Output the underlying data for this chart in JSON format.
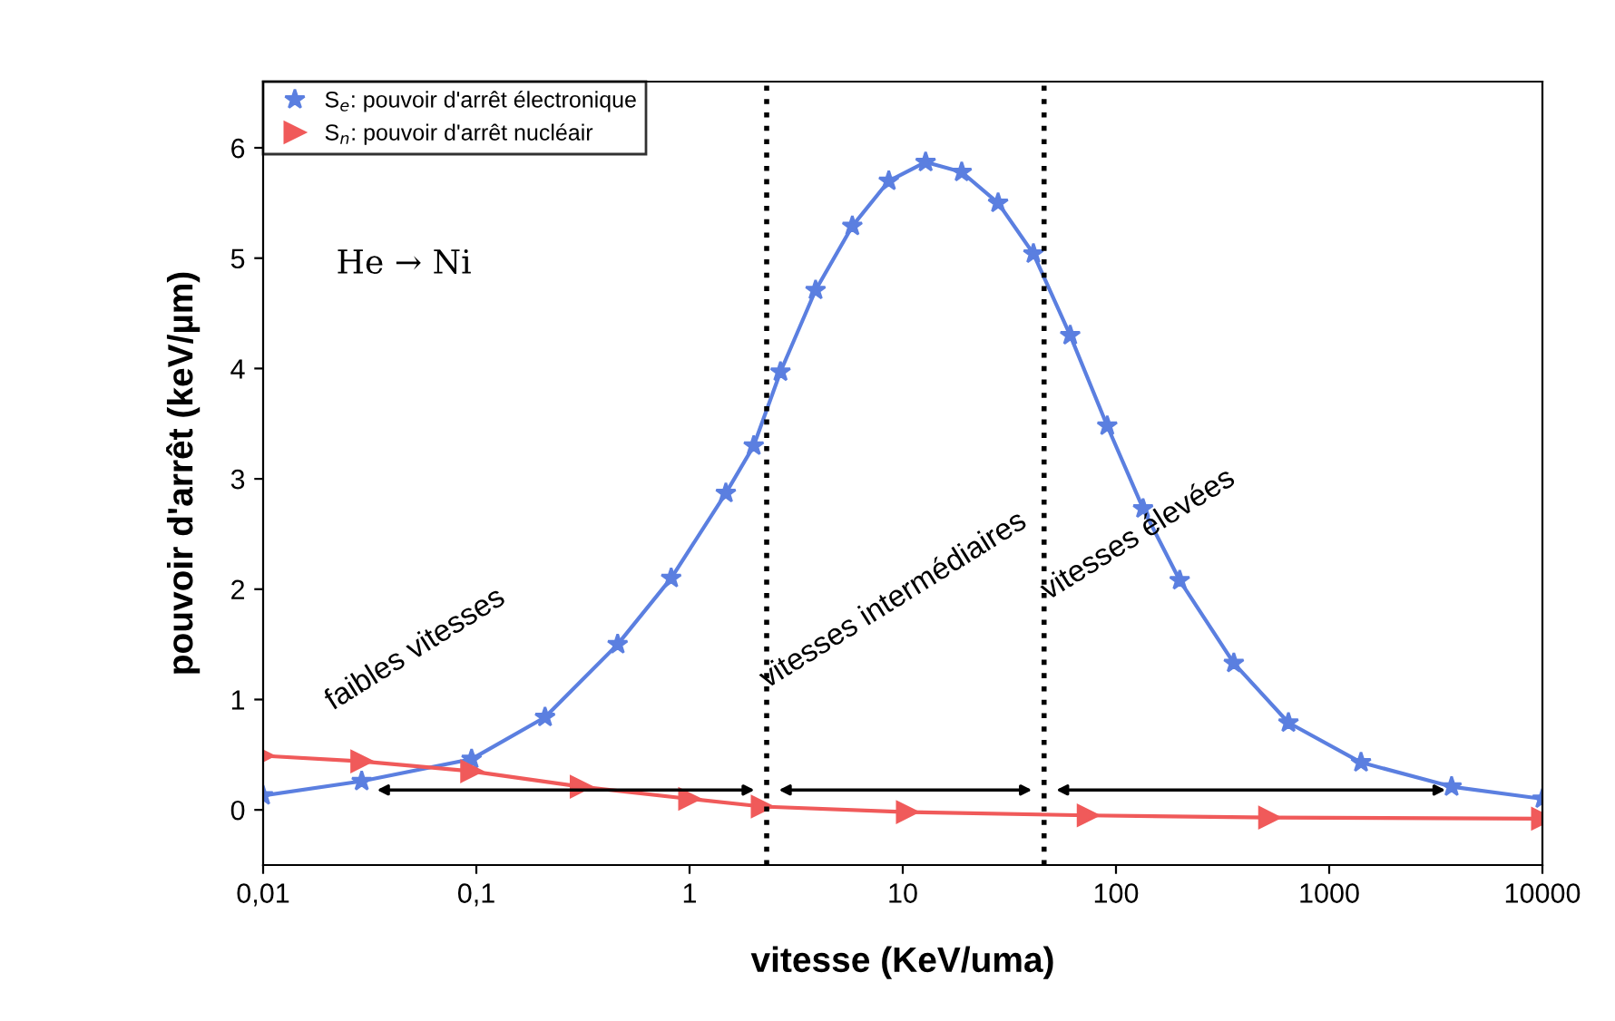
{
  "chart_data": {
    "type": "line",
    "xlabel": "vitesse (KeV/uma)",
    "ylabel": "pouvoir d'arrêt (keV/µm)",
    "log": "x",
    "xlim": [
      0.01,
      10000
    ],
    "ylim": [
      -0.5,
      6.6
    ],
    "xticks": [
      {
        "value": 0.01,
        "label": "0,01"
      },
      {
        "value": 0.1,
        "label": "0,1"
      },
      1,
      10,
      100,
      1000,
      10000
    ],
    "yticks": [
      0,
      1,
      2,
      3,
      4,
      5,
      6
    ],
    "grid": false,
    "legend": "top left",
    "series": [
      {
        "name": "S$_{e}$: pouvoir d'arrêt électronique",
        "color": "#5b7fe0",
        "marker": "star",
        "line_style": "solid",
        "x": [
          0.01,
          0.029,
          0.095,
          0.21,
          0.46,
          0.82,
          1.48,
          2.0,
          2.67,
          3.9,
          5.8,
          8.6,
          12.8,
          18.9,
          28,
          41,
          61,
          91,
          134,
          199,
          357,
          644,
          1410,
          3750,
          10000
        ],
        "values": [
          0.13,
          0.26,
          0.46,
          0.84,
          1.5,
          2.1,
          2.87,
          3.3,
          3.97,
          4.71,
          5.29,
          5.7,
          5.87,
          5.78,
          5.5,
          5.04,
          4.3,
          3.48,
          2.73,
          2.08,
          1.33,
          0.79,
          0.43,
          0.21,
          0.1
        ]
      },
      {
        "name": "S$_{n}$: pouvoir d'arrêt nucléair",
        "color": "#f05a5a",
        "marker": "triangle",
        "line_style": "solid",
        "x": [
          0.01,
          0.029,
          0.095,
          0.31,
          1.0,
          2.19,
          10.5,
          74,
          525,
          10000
        ],
        "values": [
          0.49,
          0.44,
          0.35,
          0.21,
          0.1,
          0.03,
          -0.02,
          -0.05,
          -0.07,
          -0.08
        ]
      }
    ],
    "ref_lines": [
      {
        "axis": "x",
        "value": 2.3,
        "color": "#000000",
        "line_style": "dotted"
      },
      {
        "axis": "x",
        "value": 46,
        "color": "#000000",
        "line_style": "dotted"
      }
    ],
    "annotations": [
      "He → Ni",
      "faibles vitesses",
      "vitesses intermédiaires",
      "vitesses élevées"
    ]
  }
}
